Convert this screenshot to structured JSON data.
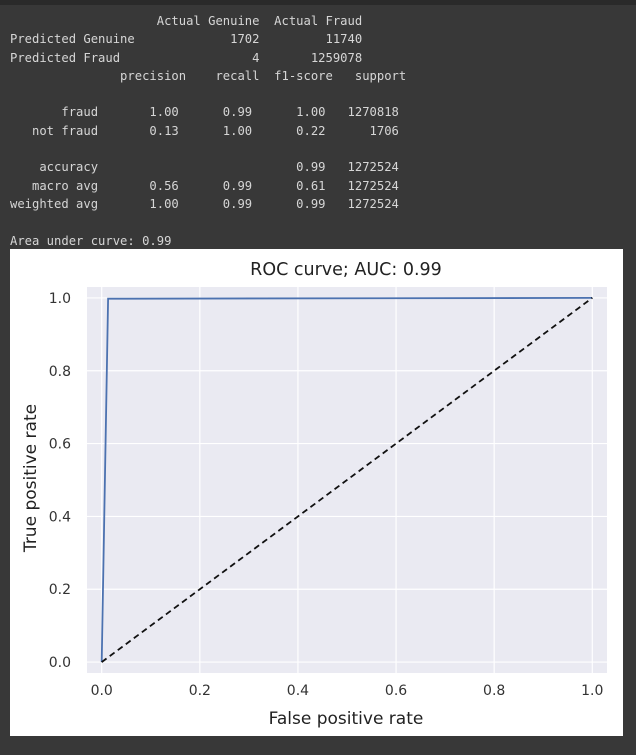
{
  "console": {
    "lines": [
      "                    Actual Genuine  Actual Fraud",
      "Predicted Genuine             1702         11740",
      "Predicted Fraud                  4       1259078",
      "               precision    recall  f1-score   support",
      "",
      "       fraud       1.00      0.99      1.00   1270818",
      "   not fraud       0.13      1.00      0.22      1706",
      "",
      "    accuracy                           0.99   1272524",
      "   macro avg       0.56      0.99      0.61   1272524",
      "weighted avg       1.00      0.99      0.99   1272524",
      "",
      "Area under curve: 0.99"
    ]
  },
  "chart_data": {
    "type": "line",
    "title": "ROC curve; AUC: 0.99",
    "xlabel": "False positive rate",
    "ylabel": "True positive rate",
    "xlim": [
      -0.03,
      1.03
    ],
    "ylim": [
      -0.03,
      1.03
    ],
    "xticks": [
      0.0,
      0.2,
      0.4,
      0.6,
      0.8,
      1.0
    ],
    "yticks": [
      0.0,
      0.2,
      0.4,
      0.6,
      0.8,
      1.0
    ],
    "xtick_labels": [
      "0.0",
      "0.2",
      "0.4",
      "0.6",
      "0.8",
      "1.0"
    ],
    "ytick_labels": [
      "0.0",
      "0.2",
      "0.4",
      "0.6",
      "0.8",
      "1.0"
    ],
    "grid": true,
    "series": [
      {
        "style": "solid",
        "color": "#4c72b0",
        "x": [
          0.0,
          0.013,
          1.0
        ],
        "y": [
          0.0,
          0.998,
          1.0
        ]
      },
      {
        "style": "dashed",
        "color": "#111111",
        "x": [
          0.0,
          1.0
        ],
        "y": [
          0.0,
          1.0
        ]
      }
    ],
    "plot_bg": "#eaeaf2"
  }
}
